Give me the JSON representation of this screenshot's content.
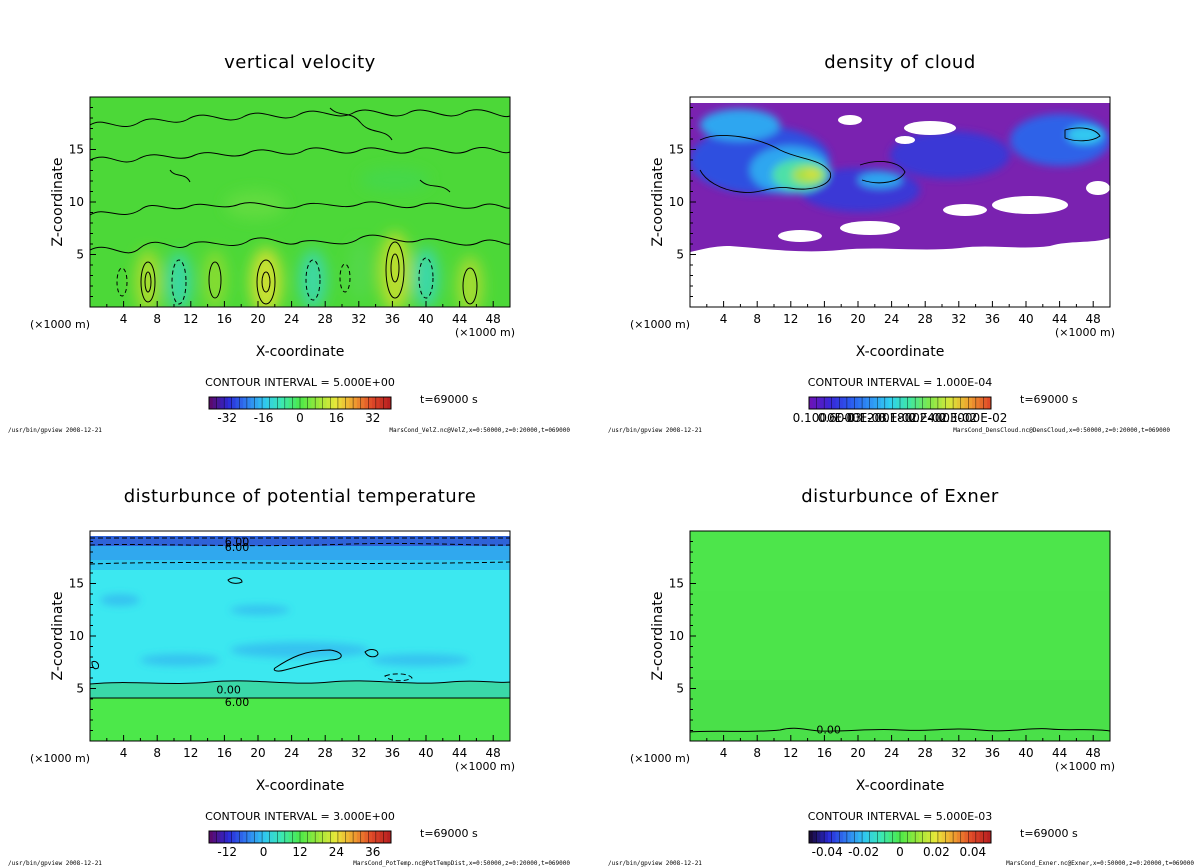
{
  "figure": {
    "panels": [
      {
        "id": "p1",
        "title": "vertical velocity",
        "contour_interval_text": "CONTOUR INTERVAL = 5.000E+00",
        "time_text": "t=69000 s",
        "footer_left": "/usr/bin/gpview  2008-12-21",
        "footer_right": "MarsCond_VelZ.nc@VelZ,x=0:50000,z=0:20000,t=069000",
        "colorbar_labels": [
          "-32",
          "-16",
          "0",
          "16",
          "32"
        ],
        "colormap": [
          "#5a0a6e",
          "#2a2ad8",
          "#2f7bf0",
          "#30c8f0",
          "#3ce8b0",
          "#4ce84a",
          "#9ae83a",
          "#e8e83a",
          "#f0a030",
          "#e04a28",
          "#b82020"
        ]
      },
      {
        "id": "p2",
        "title": "density of cloud",
        "contour_interval_text": "CONTOUR INTERVAL = 1.000E-04",
        "time_text": "t=69000 s",
        "footer_left": "/usr/bin/gpview  2008-12-21",
        "footer_right": "MarsCond_DensCloud.nc@DensCloud,x=0:50000,z=0:20000,t=069000",
        "colorbar_labels": [
          "0.1000E-03",
          "0.6000E-03",
          "0.1200E-02",
          "0.1800E-02",
          "0.2400E-02",
          "0.3000E-02"
        ],
        "colormap": [
          "#6a14b8",
          "#3828d8",
          "#2a5aee",
          "#2f92f4",
          "#30d0f0",
          "#40e8a0",
          "#80e84a",
          "#d8e83a",
          "#f0a030",
          "#e04a28"
        ]
      },
      {
        "id": "p3",
        "title": "disturbunce of potential temperature",
        "contour_interval_text": "CONTOUR INTERVAL = 3.000E+00",
        "time_text": "t=69000 s",
        "footer_left": "/usr/bin/gpview  2008-12-21",
        "footer_right": "MarsCond_PotTemp.nc@PotTempDist,x=0:50000,z=0:20000,t=069000",
        "colorbar_labels": [
          "-12",
          "0",
          "12",
          "24",
          "36"
        ],
        "colormap": [
          "#5a0a6e",
          "#2a2ad8",
          "#2f7bf0",
          "#30c8f0",
          "#3ce8b0",
          "#4ce84a",
          "#9ae83a",
          "#e8e83a",
          "#f0a030",
          "#e04a28",
          "#b82020"
        ],
        "contour_labels": [
          "6.00",
          "6.00",
          "0.00",
          "6.00"
        ]
      },
      {
        "id": "p4",
        "title": "disturbunce of Exner",
        "contour_interval_text": "CONTOUR INTERVAL = 5.000E-03",
        "time_text": "t=69000 s",
        "footer_left": "/usr/bin/gpview  2008-12-21",
        "footer_right": "MarsCond_Exner.nc@Exner,x=0:50000,z=0:20000,t=069000",
        "colorbar_labels": [
          "-0.04",
          "-0.02",
          "0",
          "0.02",
          "0.04"
        ],
        "colormap": [
          "#1a0a3a",
          "#2a2ad8",
          "#2f7bf0",
          "#30c8f0",
          "#3ce8b0",
          "#4ce84a",
          "#9ae83a",
          "#e8e83a",
          "#f0a030",
          "#e04a28",
          "#b82020"
        ],
        "contour_labels": [
          "0.00"
        ]
      }
    ],
    "axes": {
      "xlabel": "X-coordinate",
      "ylabel": "Z-coordinate",
      "x_unit_left": "(×1000 m)",
      "x_unit_right": "(×1000 m)",
      "x_ticks": [
        "4",
        "8",
        "12",
        "16",
        "20",
        "24",
        "28",
        "32",
        "36",
        "40",
        "44",
        "48"
      ],
      "y_ticks": [
        "5",
        "10",
        "15"
      ]
    }
  },
  "chart_data": [
    {
      "type": "heatmap",
      "title": "vertical velocity",
      "xlabel": "X-coordinate",
      "ylabel": "Z-coordinate",
      "xlim": [
        0,
        50
      ],
      "ylim": [
        0,
        20
      ],
      "x_ticks": [
        4,
        8,
        12,
        16,
        20,
        24,
        28,
        32,
        36,
        40,
        44,
        48
      ],
      "y_ticks": [
        5,
        10,
        15
      ],
      "colorbar_ticks": [
        -32,
        -16,
        0,
        16,
        32
      ],
      "contour_interval": 5.0,
      "time_s": 69000,
      "features": [
        {
          "x": 6.5,
          "z": 2.5,
          "sign": "positive"
        },
        {
          "x": 10.5,
          "z": 2.5,
          "sign": "negative"
        },
        {
          "x": 15.0,
          "z": 2.5,
          "sign": "positive"
        },
        {
          "x": 21.0,
          "z": 2.4,
          "sign": "positive"
        },
        {
          "x": 26.5,
          "z": 2.6,
          "sign": "negative"
        },
        {
          "x": 36.0,
          "z": 3.5,
          "sign": "positive"
        },
        {
          "x": 40.0,
          "z": 2.5,
          "sign": "negative"
        },
        {
          "x": 45.0,
          "z": 2.0,
          "sign": "positive"
        }
      ]
    },
    {
      "type": "heatmap",
      "title": "density of cloud",
      "xlabel": "X-coordinate",
      "ylabel": "Z-coordinate",
      "xlim": [
        0,
        50
      ],
      "ylim": [
        0,
        20
      ],
      "x_ticks": [
        4,
        8,
        12,
        16,
        20,
        24,
        28,
        32,
        36,
        40,
        44,
        48
      ],
      "y_ticks": [
        5,
        10,
        15
      ],
      "colorbar_ticks": [
        0.0001,
        0.0006,
        0.0012,
        0.0018,
        0.0024,
        0.003
      ],
      "contour_interval": 0.0001,
      "time_s": 69000,
      "cloud_layer_z": [
        5.5,
        19
      ],
      "features": [
        {
          "x": 13.0,
          "z": 12.5,
          "level": "max"
        },
        {
          "x": 7.0,
          "z": 16.0,
          "level": "high"
        },
        {
          "x": 44.0,
          "z": 16.5,
          "level": "medium"
        },
        {
          "x": 26.0,
          "z": 14.0,
          "level": "medium"
        }
      ]
    },
    {
      "type": "heatmap",
      "title": "disturbunce of potential temperature",
      "xlabel": "X-coordinate",
      "ylabel": "Z-coordinate",
      "xlim": [
        0,
        50
      ],
      "ylim": [
        0,
        20
      ],
      "x_ticks": [
        4,
        8,
        12,
        16,
        20,
        24,
        28,
        32,
        36,
        40,
        44,
        48
      ],
      "y_ticks": [
        5,
        10,
        15
      ],
      "colorbar_ticks": [
        -12,
        0,
        12,
        24,
        36
      ],
      "contour_interval": 3.0,
      "time_s": 69000,
      "bands": [
        {
          "z": [
            0,
            4.2
          ],
          "value": 8
        },
        {
          "z": [
            4.2,
            5.3
          ],
          "value": 3
        },
        {
          "z": [
            5.3,
            17
          ],
          "value": -3
        },
        {
          "z": [
            17,
            19
          ],
          "value": -6
        }
      ],
      "contour_labels": [
        {
          "x": 17.5,
          "z": 19.0,
          "label": "6.00"
        },
        {
          "x": 17.5,
          "z": 18.5,
          "label": "6.00"
        },
        {
          "x": 16.5,
          "z": 4.9,
          "label": "0.00"
        },
        {
          "x": 17.5,
          "z": 3.7,
          "label": "6.00"
        }
      ]
    },
    {
      "type": "heatmap",
      "title": "disturbunce of Exner",
      "xlabel": "X-coordinate",
      "ylabel": "Z-coordinate",
      "xlim": [
        0,
        50
      ],
      "ylim": [
        0,
        20
      ],
      "x_ticks": [
        4,
        8,
        12,
        16,
        20,
        24,
        28,
        32,
        36,
        40,
        44,
        48
      ],
      "y_ticks": [
        5,
        10,
        15
      ],
      "colorbar_ticks": [
        -0.04,
        -0.02,
        0,
        0.02,
        0.04
      ],
      "contour_interval": 0.005,
      "time_s": 69000,
      "contour_labels": [
        {
          "x": 16.5,
          "z": 1.1,
          "label": "0.00"
        }
      ]
    }
  ]
}
